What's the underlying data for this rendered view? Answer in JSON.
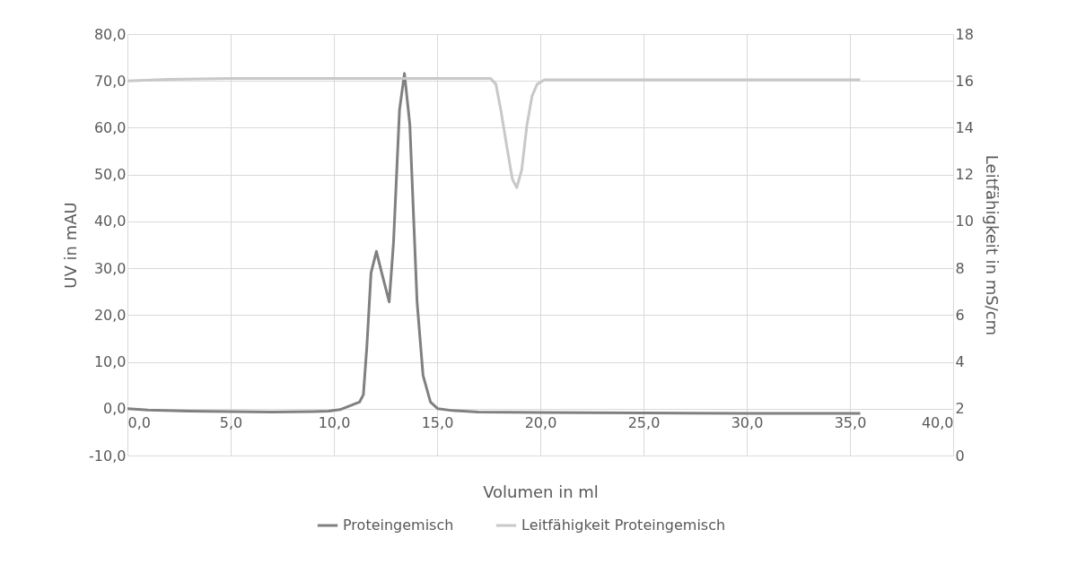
{
  "chart_data": {
    "type": "line",
    "xlabel": "Volumen in ml",
    "ylabel": "UV in mAU",
    "y2label": "Leitfähigkeit in mS/cm",
    "xlim": [
      0,
      40
    ],
    "xticks": [
      {
        "value": 0,
        "label": "0,0"
      },
      {
        "value": 5,
        "label": "5,0"
      },
      {
        "value": 10,
        "label": "10,0"
      },
      {
        "value": 15,
        "label": "15,0"
      },
      {
        "value": 20,
        "label": "20,0"
      },
      {
        "value": 25,
        "label": "25,0"
      },
      {
        "value": 30,
        "label": "30,0"
      },
      {
        "value": 35,
        "label": "35,0"
      },
      {
        "value": 40,
        "label": "40,0"
      }
    ],
    "ylim": [
      -10,
      80
    ],
    "yticks": [
      {
        "value": -10,
        "label": "-10,0"
      },
      {
        "value": 0,
        "label": "0,0"
      },
      {
        "value": 10,
        "label": "10,0"
      },
      {
        "value": 20,
        "label": "20,0"
      },
      {
        "value": 30,
        "label": "30,0"
      },
      {
        "value": 40,
        "label": "40,0"
      },
      {
        "value": 50,
        "label": "50,0"
      },
      {
        "value": 60,
        "label": "60,0"
      },
      {
        "value": 70,
        "label": "70,0"
      },
      {
        "value": 80,
        "label": "80,0"
      }
    ],
    "y2lim": [
      0,
      18
    ],
    "y2ticks": [
      0,
      2,
      4,
      6,
      8,
      10,
      12,
      14,
      16,
      18
    ],
    "grid": true,
    "legend": "bottom",
    "marker": "none",
    "line_style": "solid",
    "series": [
      {
        "name": "Proteingemisch",
        "color": "#808080",
        "x": [
          0,
          1,
          3,
          5,
          7,
          9,
          9.74,
          10.3,
          10.6,
          11.24,
          11.43,
          11.6,
          11.8,
          12.06,
          12.32,
          12.68,
          12.89,
          13.18,
          13.42,
          13.68,
          14.03,
          14.32,
          14.68,
          15.04,
          15.75,
          17,
          20,
          25,
          30,
          35.5
        ],
        "values": [
          0,
          -0.3,
          -0.5,
          -0.6,
          -0.7,
          -0.6,
          -0.5,
          -0.2,
          0.3,
          1.4,
          3.0,
          13.4,
          29,
          33.6,
          29,
          22.8,
          35.5,
          63.8,
          71.6,
          60.7,
          22.8,
          7.1,
          1.4,
          0,
          -0.4,
          -0.7,
          -0.8,
          -0.9,
          -1.0,
          -1.0
        ]
      },
      {
        "name": "Leitfähigkeit Proteingemisch",
        "color": "#c8c8c8",
        "axis": "y2",
        "x": [
          0,
          2,
          5,
          10,
          15,
          17.6,
          17.85,
          18.1,
          18.4,
          18.65,
          18.86,
          19.1,
          19.35,
          19.6,
          19.85,
          20.2,
          25,
          30,
          35.5
        ],
        "values": [
          16.0,
          16.07,
          16.1,
          16.1,
          16.1,
          16.1,
          15.86,
          14.7,
          13.08,
          11.8,
          11.44,
          12.2,
          14.1,
          15.35,
          15.86,
          16.05,
          16.05,
          16.05,
          16.05
        ]
      }
    ]
  }
}
